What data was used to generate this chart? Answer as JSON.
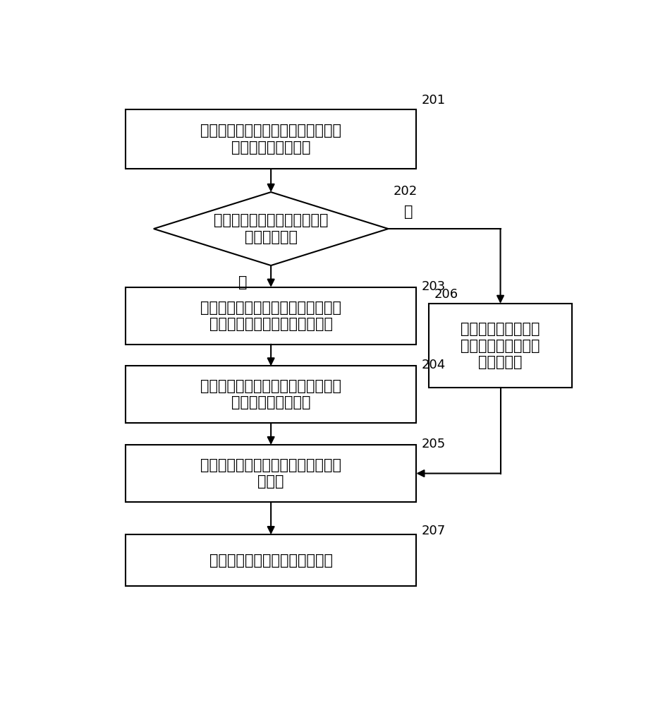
{
  "background_color": "#ffffff",
  "line_color": "#000000",
  "line_width": 1.5,
  "font_size_main": 15,
  "font_size_number": 13,
  "nodes": {
    "201_label": "提供一种置于标刻有定位标记和样品\n编号的硅片上的样品",
    "202_label": "识别样品编号，确定样品是否\n为首次被探测",
    "203_label": "识别定位标记，获取定位标记在光学\n显微镜下的坐标，记录样品编号",
    "204_label": "识别定位标记，获取定位标记在扫描\n电子显微镜下的坐标",
    "205_label": "确定、存储两个坐标系之间的相对位\n置关系",
    "206_label": "调取已存储的经过位\n置校准后的样品的相\n对位置关系",
    "207_label": "对样品进行扫描电子显微镜探测"
  },
  "labels": {
    "yes": "是",
    "no": "否"
  },
  "numbers": [
    "201",
    "202",
    "203",
    "204",
    "205",
    "206",
    "207"
  ]
}
